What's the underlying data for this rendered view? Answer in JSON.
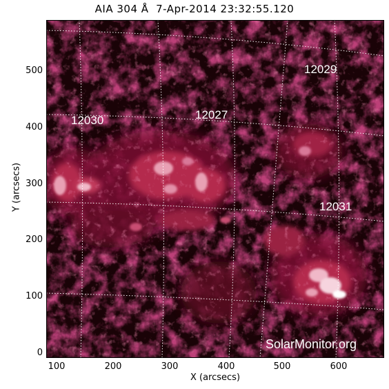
{
  "title": "AIA 304 Å  7-Apr-2014 23:32:55.120",
  "x_axis_label": "X (arcsecs)",
  "y_axis_label": "Y (arcsecs)",
  "x_ticks": [
    "100",
    "200",
    "300",
    "400",
    "500",
    "600"
  ],
  "y_ticks": [
    "500",
    "400",
    "300",
    "200",
    "100",
    "0"
  ],
  "regions": [
    "12029",
    "12030",
    "12027",
    "12031"
  ],
  "watermark": "SolarMonitor.org",
  "colors": {
    "background": "#1a0307",
    "emission_dim": "#7a1030",
    "emission_mid": "#b42a4e",
    "emission_bright": "#f0b8c8",
    "grid": "#ffffff",
    "frame": "#000000"
  }
}
